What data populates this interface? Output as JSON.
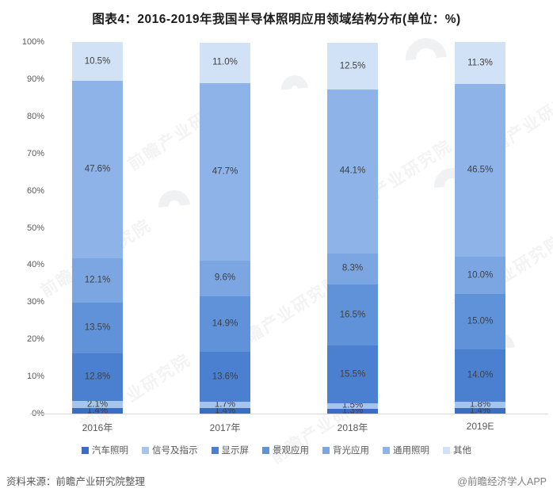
{
  "title": "图表4：2016-2019年我国半导体照明应用领域结构分布(单位：%)",
  "chart_data": {
    "type": "bar",
    "stacked": true,
    "percent_stacked": true,
    "title": "图表4：2016-2019年我国半导体照明应用领域结构分布(单位：%)",
    "unit": "%",
    "categories": [
      "2016年",
      "2017年",
      "2018年",
      "2019E"
    ],
    "series": [
      {
        "name": "汽车照明",
        "color": "#3a6ec5",
        "values": [
          1.4,
          1.4,
          1.3,
          1.4
        ]
      },
      {
        "name": "信号及指示",
        "color": "#a6c5ec",
        "values": [
          2.1,
          1.7,
          1.5,
          1.8
        ]
      },
      {
        "name": "显示屏",
        "color": "#4b80d1",
        "values": [
          12.8,
          13.6,
          15.5,
          14.0
        ]
      },
      {
        "name": "景观应用",
        "color": "#6092d9",
        "values": [
          13.5,
          14.9,
          16.5,
          15.0
        ]
      },
      {
        "name": "背光应用",
        "color": "#7ca6e2",
        "values": [
          12.1,
          9.6,
          8.3,
          10.0
        ]
      },
      {
        "name": "通用照明",
        "color": "#8db3e8",
        "values": [
          47.6,
          47.7,
          44.1,
          46.5
        ]
      },
      {
        "name": "其他",
        "color": "#d2e2f6",
        "values": [
          10.5,
          11.0,
          12.5,
          11.3
        ]
      }
    ],
    "ylim": [
      0,
      100
    ],
    "yticks": [
      0,
      10,
      20,
      30,
      40,
      50,
      60,
      70,
      80,
      90,
      100
    ],
    "ytick_suffix": "%",
    "grid": false,
    "legend_position": "bottom",
    "value_label_suffix": "%"
  },
  "footer": {
    "source": "资料来源：前瞻产业研究院整理",
    "credit": "@前瞻经济学人APP"
  },
  "watermark": {
    "text": "前瞻产业研究院"
  }
}
